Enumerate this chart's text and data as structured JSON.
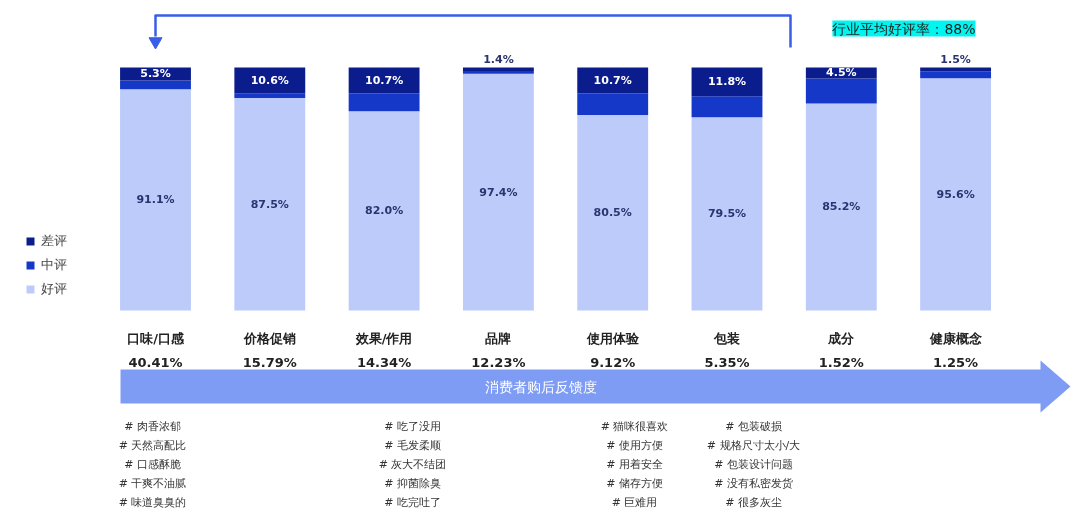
{
  "chart_data": {
    "type": "bar",
    "stacked": true,
    "categories": [
      "口味/口感\n40.41%",
      "价格促销\n15.79%",
      "效果/作用\n14.34%",
      "品牌\n12.23%",
      "使用体验\n9.12%",
      "包装\n5.35%",
      "成分\n1.52%",
      "健康概念\n1.25%"
    ],
    "series": [
      {
        "name": "好评",
        "color": "#bccbfa",
        "values": [
          91.1,
          87.5,
          82.0,
          97.4,
          80.5,
          79.5,
          85.2,
          95.6
        ],
        "value_labels": [
          "91.1%",
          "87.5%",
          "82.0%",
          "97.4%",
          "80.5%",
          "79.5%",
          "85.2%",
          "95.6%"
        ]
      },
      {
        "name": "中评",
        "color": "#1538c8",
        "values": [
          3.6,
          1.9,
          7.3,
          1.2,
          8.8,
          8.7,
          10.3,
          2.9
        ],
        "value_labels": [
          null,
          null,
          null,
          null,
          null,
          null,
          null,
          null
        ]
      },
      {
        "name": "差评",
        "color": "#0b1d8c",
        "values": [
          5.3,
          10.6,
          10.7,
          1.4,
          10.7,
          11.8,
          4.5,
          1.5
        ],
        "value_labels": [
          "5.3%",
          "10.6%",
          "10.7%",
          "1.4%",
          "10.7%",
          "11.8%",
          "4.5%",
          "1.5%"
        ]
      }
    ],
    "ylim": [
      0,
      100
    ],
    "legend": "left",
    "annotations": [
      "行业平均好评率：88%",
      "消费者购后反馈度",
      "# 肉香浓郁\n# 天然高配比\n# 口感酥脆\n# 干爽不油腻\n# 味道臭臭的",
      "# 吃了没用\n# 毛发柔顺\n# 灰大不结团\n# 抑菌除臭\n# 吃完吐了",
      "# 猫咪很喜欢\n# 使用方便\n# 用着安全\n# 储存方便\n# 巨难用",
      "# 包装破损\n# 规格尺寸太小/大\n# 包装设计问题\n# 没有私密发货\n# 很多灰尘"
    ]
  }
}
